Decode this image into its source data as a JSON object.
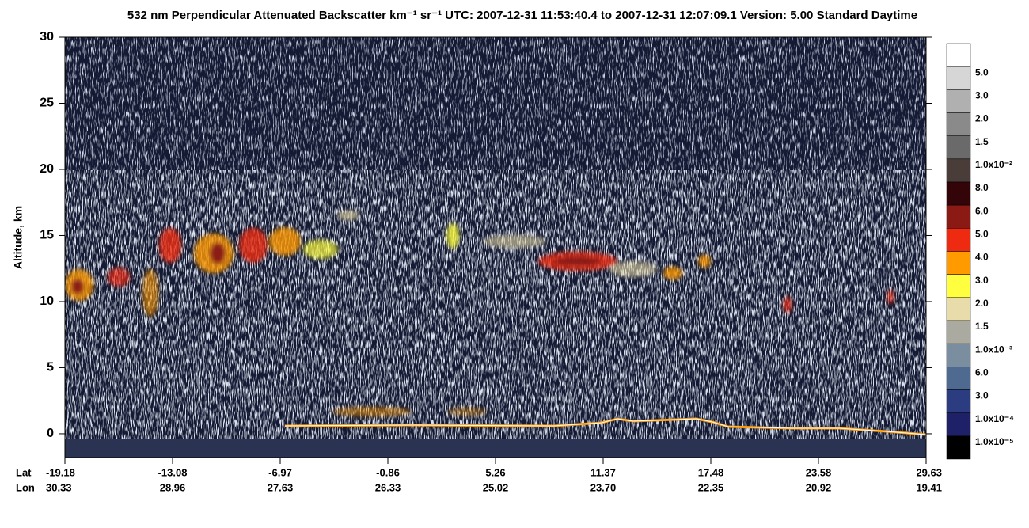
{
  "chart_data": {
    "type": "curtain",
    "title": "532 nm Perpendicular Attenuated Backscatter km⁻¹ sr⁻¹  UTC: 2007-12-31 11:53:40.4 to 2007-12-31 12:07:09.1  Version: 5.00 Standard Daytime",
    "y_label": "Altitude, km",
    "ylim": [
      -1.8,
      30
    ],
    "yticks": [
      0,
      5,
      10,
      15,
      20,
      25,
      30
    ],
    "x_row_labels": [
      "Lat",
      "Lon"
    ],
    "lat_labels": [
      "-19.18",
      "-13.08",
      "-6.97",
      "-0.86",
      "5.26",
      "11.37",
      "17.48",
      "23.58",
      "29.63"
    ],
    "lon_labels": [
      "30.33",
      "28.96",
      "27.63",
      "26.33",
      "25.02",
      "23.70",
      "22.35",
      "20.92",
      "19.41"
    ],
    "colorbar": {
      "colors": [
        "#ffffff",
        "#d6d6d6",
        "#b0b0b0",
        "#8a8a8a",
        "#6a6a6a",
        "#4a3c38",
        "#330408",
        "#8b1a14",
        "#ee2a10",
        "#ff9a00",
        "#ffff40",
        "#e8dcaa",
        "#aaaaa0",
        "#7a8ea0",
        "#4e6a90",
        "#2c3c80",
        "#1e2068",
        "#000000"
      ],
      "labels": [
        "5.0",
        "3.0",
        "2.0",
        "1.5",
        "1.0x10⁻²",
        "8.0",
        "6.0",
        "5.0",
        "4.0",
        "3.0",
        "2.0",
        "1.5",
        "1.0x10⁻³",
        "6.0",
        "3.0",
        "1.0x10⁻⁴",
        "1.0x10⁻⁵"
      ]
    }
  }
}
